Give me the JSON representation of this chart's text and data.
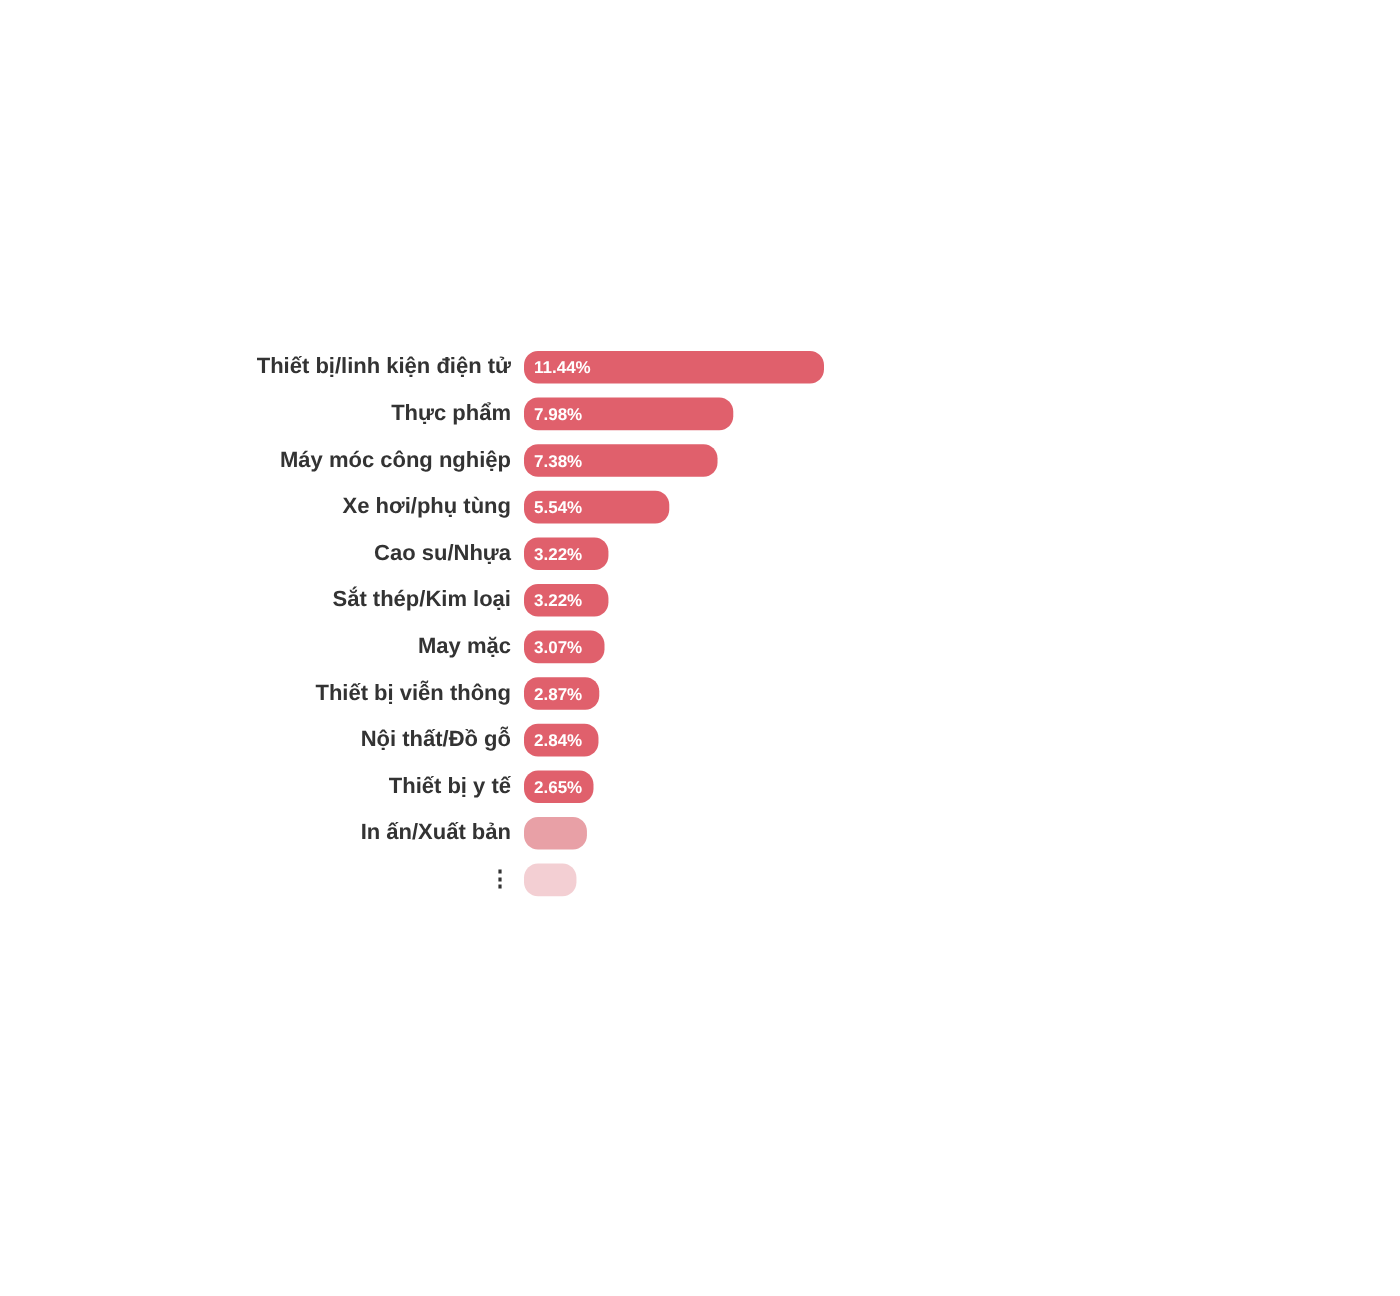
{
  "chart_data": {
    "type": "bar",
    "orientation": "horizontal",
    "categories": [
      "Thiết bị/linh kiện điện tử",
      "Thực phẩm",
      "Máy móc công nghiệp",
      "Xe hơi/phụ tùng",
      "Cao su/Nhựa",
      "Sắt thép/Kim loại",
      "May mặc",
      "Thiết bị viễn thông",
      "Nội thất/Đồ gỗ",
      "Thiết bị y tế",
      "In ấn/Xuất bản",
      "⋮"
    ],
    "values": [
      11.44,
      7.98,
      7.38,
      5.54,
      3.22,
      3.22,
      3.07,
      2.87,
      2.84,
      2.65,
      2.4,
      2.0
    ],
    "value_labels": [
      "11.44%",
      "7.98%",
      "7.38%",
      "5.54%",
      "3.22%",
      "3.22%",
      "3.07%",
      "2.87%",
      "2.84%",
      "2.65%",
      null,
      null
    ],
    "colors": [
      "#e0606c",
      "#e0606c",
      "#e0606c",
      "#e0606c",
      "#e0606c",
      "#e0606c",
      "#e0606c",
      "#e0606c",
      "#e0606c",
      "#e0606c",
      "#e8a0a6",
      "#f3cfd3"
    ],
    "grid": false
  }
}
